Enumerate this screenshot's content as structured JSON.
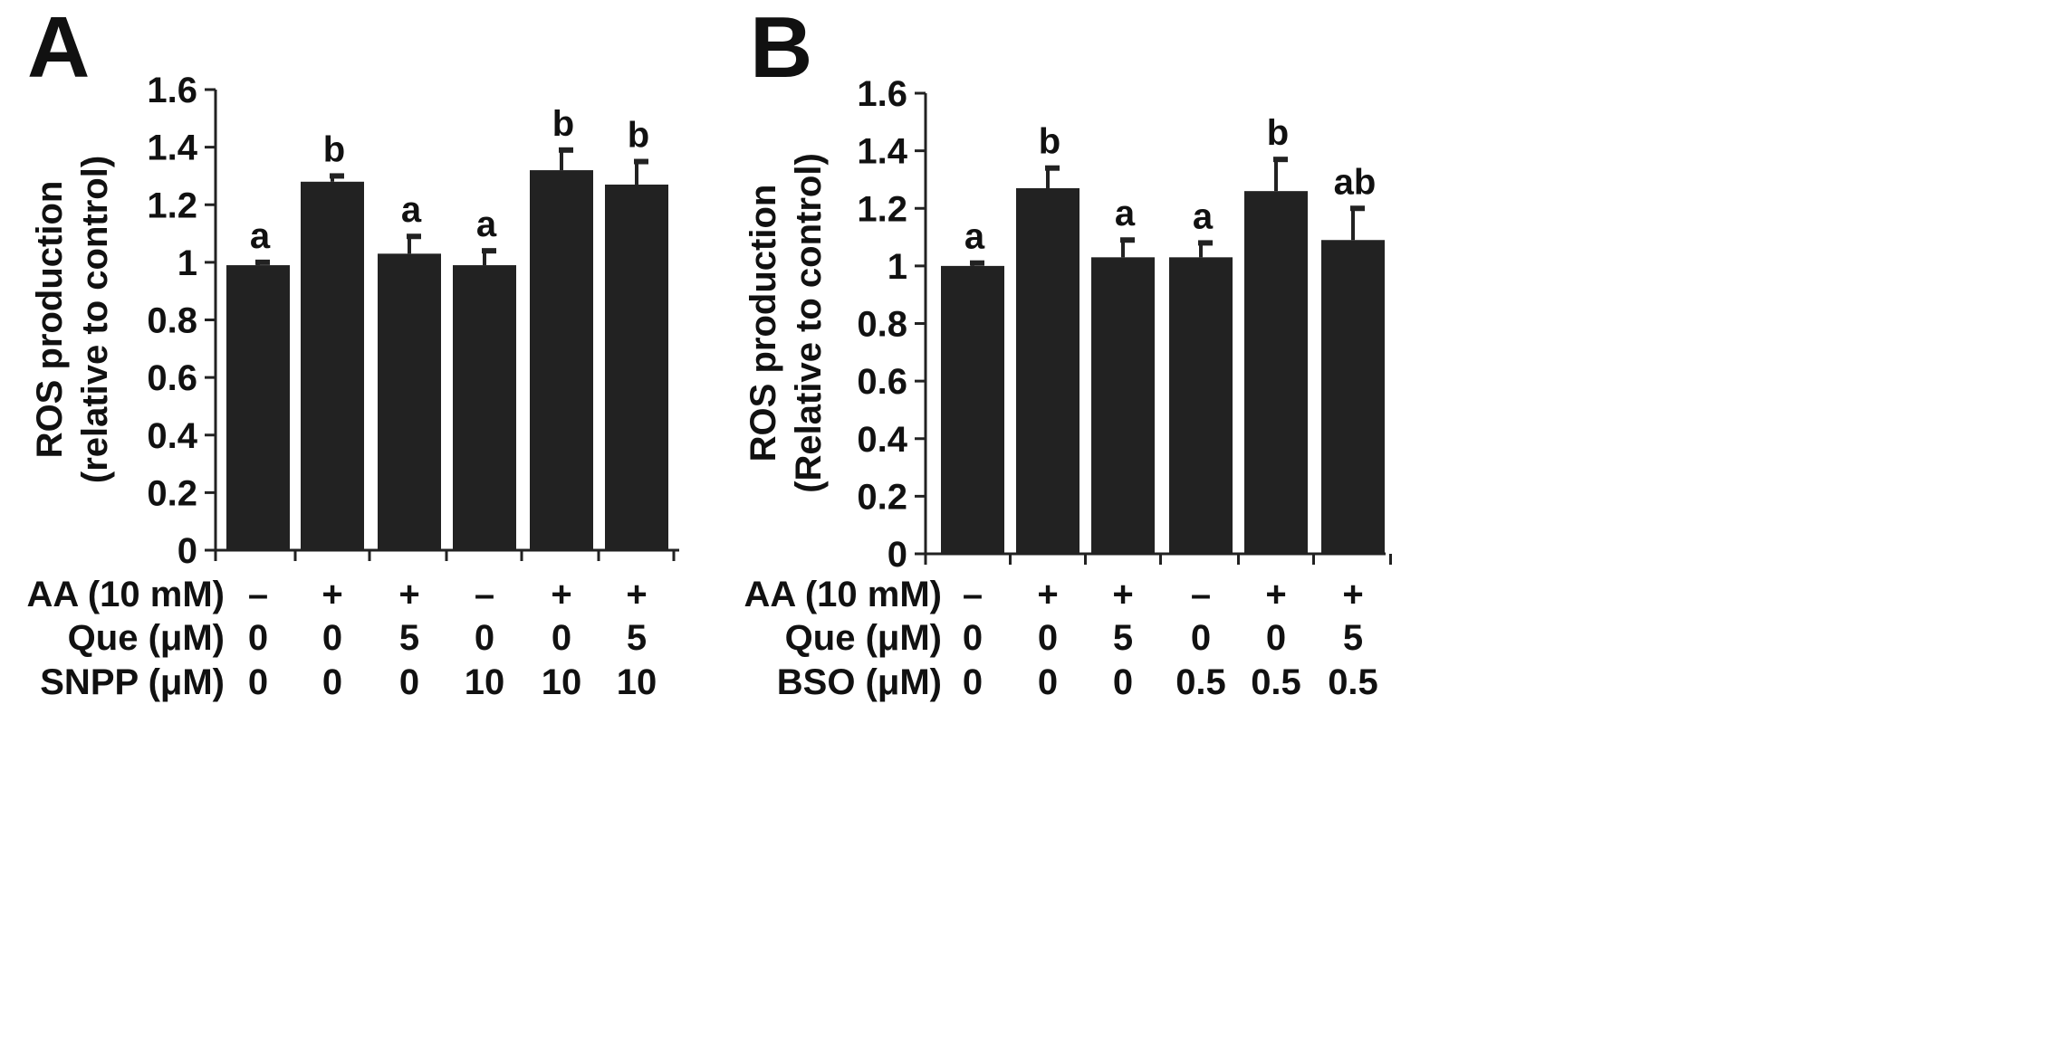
{
  "colors": {
    "bar": "#222222",
    "axis": "#222222",
    "background": "#ffffff"
  },
  "chart_data": [
    {
      "panel_label": "A",
      "type": "bar",
      "ylabel_line1": "ROS production",
      "ylabel_line2": "(relative to control)",
      "ylim": [
        0,
        1.6
      ],
      "yticks": [
        "0",
        "0.2",
        "0.4",
        "0.6",
        "0.8",
        "1",
        "1.2",
        "1.4",
        "1.6"
      ],
      "values": [
        0.99,
        1.28,
        1.03,
        0.99,
        1.32,
        1.27
      ],
      "errors": [
        0.01,
        0.02,
        0.06,
        0.05,
        0.07,
        0.08
      ],
      "letters": [
        "a",
        "b",
        "a",
        "a",
        "b",
        "b"
      ],
      "treatments": [
        {
          "label": "AA (10 mM)",
          "values": [
            "–",
            "+",
            "+",
            "–",
            "+",
            "+"
          ]
        },
        {
          "label": "Que (μM)",
          "values": [
            "0",
            "0",
            "5",
            "0",
            "0",
            "5"
          ]
        },
        {
          "label": "SNPP (μM)",
          "values": [
            "0",
            "0",
            "0",
            "10",
            "10",
            "10"
          ]
        }
      ]
    },
    {
      "panel_label": "B",
      "type": "bar",
      "ylabel_line1": "ROS production",
      "ylabel_line2": "(Relative to control)",
      "ylim": [
        0,
        1.6
      ],
      "yticks": [
        "0",
        "0.2",
        "0.4",
        "0.6",
        "0.8",
        "1",
        "1.2",
        "1.4",
        "1.6"
      ],
      "values": [
        1.0,
        1.27,
        1.03,
        1.03,
        1.26,
        1.09
      ],
      "errors": [
        0.01,
        0.07,
        0.06,
        0.05,
        0.11,
        0.11
      ],
      "letters": [
        "a",
        "b",
        "a",
        "a",
        "b",
        "ab"
      ],
      "treatments": [
        {
          "label": "AA (10 mM)",
          "values": [
            "–",
            "+",
            "+",
            "–",
            "+",
            "+"
          ]
        },
        {
          "label": "Que (μM)",
          "values": [
            "0",
            "0",
            "5",
            "0",
            "0",
            "5"
          ]
        },
        {
          "label": "BSO (μM)",
          "values": [
            "0",
            "0",
            "0",
            "0.5",
            "0.5",
            "0.5"
          ]
        }
      ]
    }
  ]
}
